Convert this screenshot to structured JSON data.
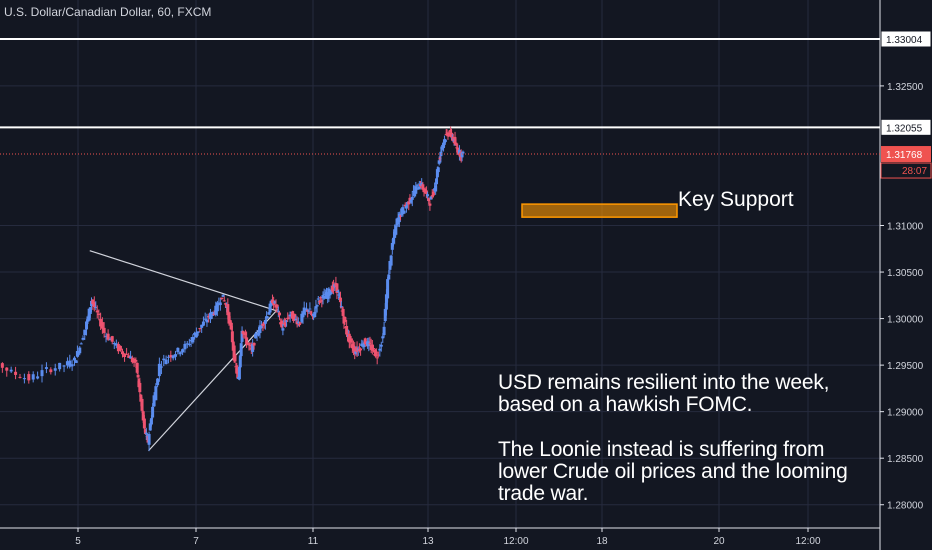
{
  "chart_data": {
    "type": "candlestick",
    "title": "U.S. Dollar/Canadian Dollar, 60, FXCM",
    "x_tick_labels": [
      "5",
      "7",
      "11",
      "13",
      "12:00",
      "18",
      "20",
      "12:00"
    ],
    "y_ticks": [
      "1.32500",
      "1.31000",
      "1.30500",
      "1.30000",
      "1.29500",
      "1.29000",
      "1.28500",
      "1.28000"
    ],
    "ylim": [
      1.2775,
      1.3338
    ],
    "grid": true,
    "horizontal_lines": [
      {
        "value": 1.33004,
        "label": "1.33004",
        "color": "#ffffff"
      },
      {
        "value": 1.32055,
        "label": "1.32055",
        "color": "#ffffff"
      }
    ],
    "current_price": {
      "value": 1.31768,
      "label": "1.31768",
      "countdown": "28:07",
      "color": "#ef5350"
    },
    "support_zone": {
      "low": 1.3109,
      "high": 1.3123,
      "label": "Key Support",
      "color": "#ff9800"
    },
    "trend_lines": [
      {
        "name": "upper",
        "from": [
          0.1,
          1.3073
        ],
        "to": [
          1.7,
          1.3008
        ]
      },
      {
        "name": "lower",
        "from": [
          0.6,
          1.2858
        ],
        "to": [
          1.7,
          1.301
        ]
      }
    ],
    "price_path": [
      [
        -1.0,
        1.2975
      ],
      [
        -0.85,
        1.2965
      ],
      [
        -0.7,
        1.2955
      ],
      [
        -0.55,
        1.2942
      ],
      [
        -0.4,
        1.2935
      ],
      [
        -0.25,
        1.2945
      ],
      [
        -0.1,
        1.295
      ],
      [
        -0.02,
        1.2955
      ],
      [
        0.02,
        1.297
      ],
      [
        0.08,
        1.2995
      ],
      [
        0.12,
        1.302
      ],
      [
        0.17,
        1.3005
      ],
      [
        0.23,
        1.2985
      ],
      [
        0.3,
        1.2975
      ],
      [
        0.37,
        1.2965
      ],
      [
        0.44,
        1.296
      ],
      [
        0.5,
        1.295
      ],
      [
        0.53,
        1.292
      ],
      [
        0.57,
        1.288
      ],
      [
        0.6,
        1.2868
      ],
      [
        0.64,
        1.2905
      ],
      [
        0.7,
        1.295
      ],
      [
        0.78,
        1.296
      ],
      [
        0.86,
        1.2965
      ],
      [
        0.94,
        1.2972
      ],
      [
        1.0,
        1.2983
      ],
      [
        1.06,
        1.2993
      ],
      [
        1.12,
        1.3002
      ],
      [
        1.18,
        1.301
      ],
      [
        1.23,
        1.3025
      ],
      [
        1.27,
        1.3012
      ],
      [
        1.31,
        1.2985
      ],
      [
        1.34,
        1.295
      ],
      [
        1.37,
        1.2935
      ],
      [
        1.4,
        1.299
      ],
      [
        1.44,
        1.2975
      ],
      [
        1.48,
        1.2965
      ],
      [
        1.53,
        1.2985
      ],
      [
        1.58,
        1.2995
      ],
      [
        1.62,
        1.3005
      ],
      [
        1.66,
        1.302
      ],
      [
        1.7,
        1.301
      ],
      [
        1.74,
        1.299
      ],
      [
        1.77,
        1.2995
      ],
      [
        1.81,
        1.3005
      ],
      [
        1.85,
        1.3
      ],
      [
        1.89,
        1.2995
      ],
      [
        1.93,
        1.3008
      ],
      [
        1.97,
        1.301
      ],
      [
        2.0,
        1.3
      ],
      [
        2.04,
        1.3018
      ],
      [
        2.08,
        1.3022
      ],
      [
        2.12,
        1.3025
      ],
      [
        2.16,
        1.3032
      ],
      [
        2.2,
        1.3035
      ],
      [
        2.23,
        1.302
      ],
      [
        2.26,
        1.3003
      ],
      [
        2.29,
        1.2985
      ],
      [
        2.32,
        1.2975
      ],
      [
        2.36,
        1.2965
      ],
      [
        2.4,
        1.2968
      ],
      [
        2.44,
        1.2975
      ],
      [
        2.48,
        1.2972
      ],
      [
        2.52,
        1.2965
      ],
      [
        2.55,
        1.296
      ],
      [
        2.6,
        1.298
      ],
      [
        2.64,
        1.304
      ],
      [
        2.68,
        1.308
      ],
      [
        2.72,
        1.3105
      ],
      [
        2.76,
        1.3115
      ],
      [
        2.8,
        1.3122
      ],
      [
        2.84,
        1.313
      ],
      [
        2.88,
        1.314
      ],
      [
        2.92,
        1.3145
      ],
      [
        2.96,
        1.3135
      ],
      [
        3.0,
        1.3125
      ],
      [
        3.04,
        1.314
      ],
      [
        3.07,
        1.3165
      ],
      [
        3.1,
        1.3185
      ],
      [
        3.13,
        1.3195
      ],
      [
        3.16,
        1.32
      ],
      [
        3.19,
        1.3195
      ],
      [
        3.22,
        1.3185
      ],
      [
        3.25,
        1.3178
      ],
      [
        3.28,
        1.3176
      ]
    ]
  },
  "note": {
    "paragraph1": "USD remains resilient into the week,\nbased on a hawkish FOMC.",
    "paragraph2": "The Loonie instead is suffering from\nlower Crude oil prices and the looming\ntrade war."
  }
}
